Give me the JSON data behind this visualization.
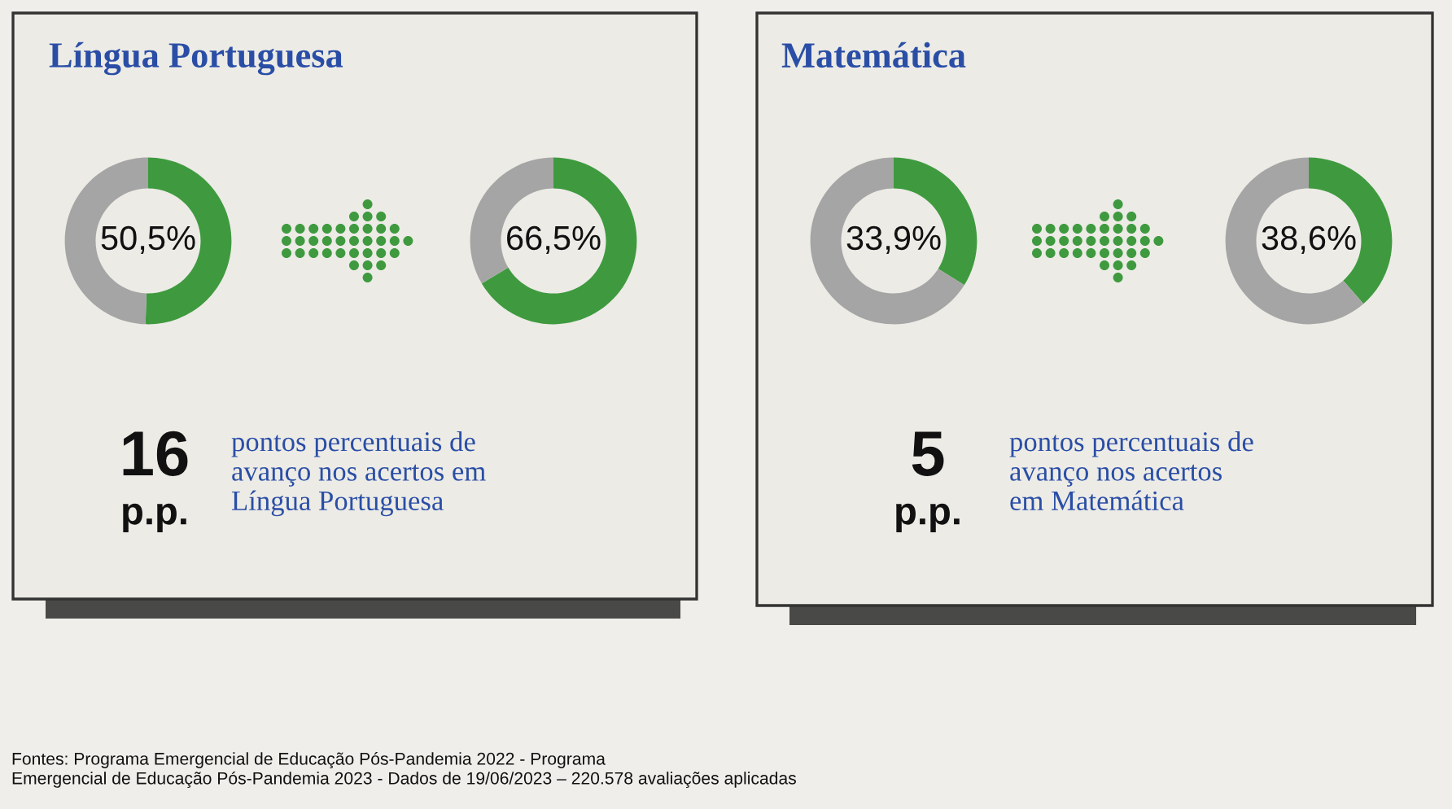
{
  "chart_data": [
    {
      "type": "donut",
      "title": "Língua Portuguesa",
      "categories": [
        null,
        null
      ],
      "values": [
        50.5,
        49.5
      ],
      "colors": [
        "#3f9a3f",
        "#a5a5a5"
      ],
      "value_labels": [
        "50,5%",
        null
      ]
    },
    {
      "type": "donut",
      "categories": [
        null,
        null
      ],
      "values": [
        66.5,
        33.5
      ],
      "colors": [
        "#3f9a3f",
        "#a5a5a5"
      ],
      "value_labels": [
        "66,5%",
        null
      ]
    },
    {
      "type": "other",
      "annotations": [
        "16",
        "p.p.",
        "pontos percentuais de\navanço nos acertos em\nLíngua Portuguesa"
      ]
    },
    {
      "type": "donut",
      "title": "Matemática",
      "categories": [
        null,
        null
      ],
      "values": [
        33.9,
        66.1
      ],
      "colors": [
        "#3f9a3f",
        "#a5a5a5"
      ],
      "value_labels": [
        "33,9%",
        null
      ]
    },
    {
      "type": "donut",
      "categories": [
        null,
        null
      ],
      "values": [
        38.6,
        61.4
      ],
      "colors": [
        "#3f9a3f",
        "#a5a5a5"
      ],
      "value_labels": [
        "38,6%",
        null
      ]
    },
    {
      "type": "other",
      "annotations": [
        "5",
        "p.p.",
        "pontos percentuais de\navanço nos acertos\nem Matemática"
      ]
    },
    {
      "type": "other",
      "annotations": [
        "Fontes: Programa Emergencial de Educação Pós-Pandemia 2022 - Programa\nEmergencial de Educação Pós-Pandemia 2023 - Dados de 19/06/2023 – 220.578 avaliações aplicadas"
      ]
    }
  ]
}
